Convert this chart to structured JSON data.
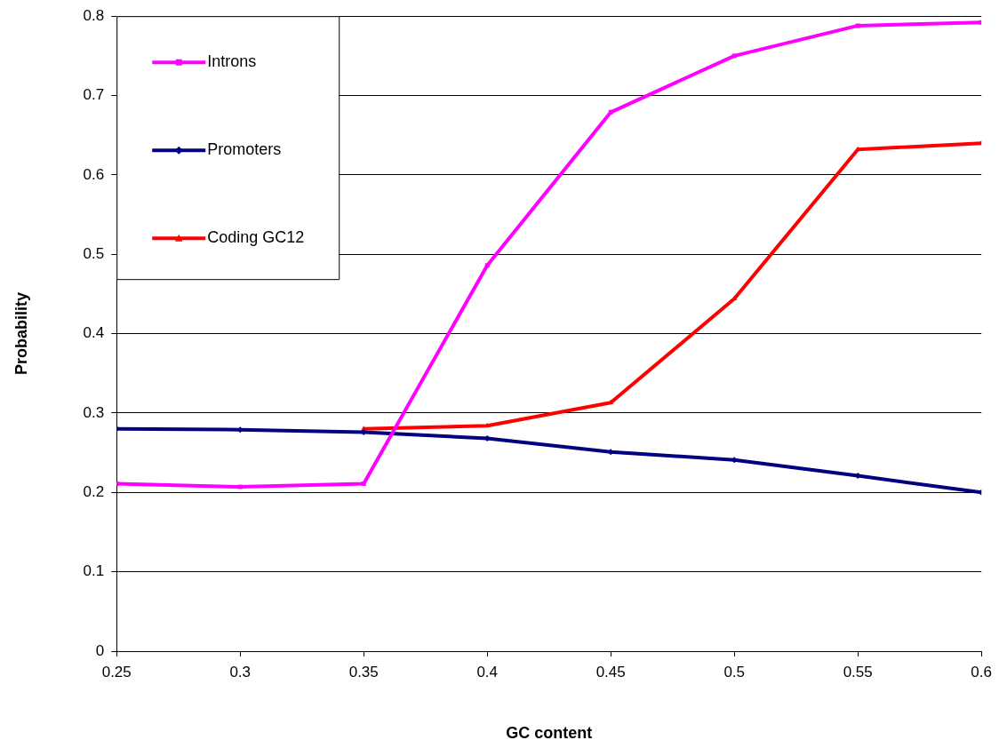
{
  "chart_data": {
    "type": "line",
    "xlabel": "GC content",
    "ylabel": "Probability",
    "x": [
      0.25,
      0.3,
      0.35,
      0.4,
      0.45,
      0.5,
      0.55,
      0.6
    ],
    "xlim": [
      0.25,
      0.6
    ],
    "xticks": [
      0.25,
      0.3,
      0.35,
      0.4,
      0.45,
      0.5,
      0.55,
      0.6
    ],
    "ylim": [
      0,
      0.8
    ],
    "yticks": [
      0,
      0.1,
      0.2,
      0.3,
      0.4,
      0.5,
      0.6,
      0.7,
      0.8
    ],
    "grid": "y",
    "legend": "top left",
    "line_style": "solid",
    "series": [
      {
        "name": "Introns",
        "color": "#ff00ff",
        "marker": "square",
        "values": [
          0.211,
          0.207,
          0.211,
          0.486,
          0.679,
          0.75,
          0.788,
          0.792
        ]
      },
      {
        "name": "Promoters",
        "color": "#000080",
        "marker": "diamond",
        "values": [
          0.28,
          0.279,
          0.276,
          0.268,
          0.251,
          0.241,
          0.221,
          0.2
        ]
      },
      {
        "name": "Coding GC12",
        "color": "#ff0000",
        "marker": "triangle",
        "x": [
          0.35,
          0.4,
          0.45,
          0.5,
          0.55,
          0.6
        ],
        "values": [
          0.28,
          0.284,
          0.313,
          0.444,
          0.632,
          0.64
        ]
      }
    ]
  }
}
